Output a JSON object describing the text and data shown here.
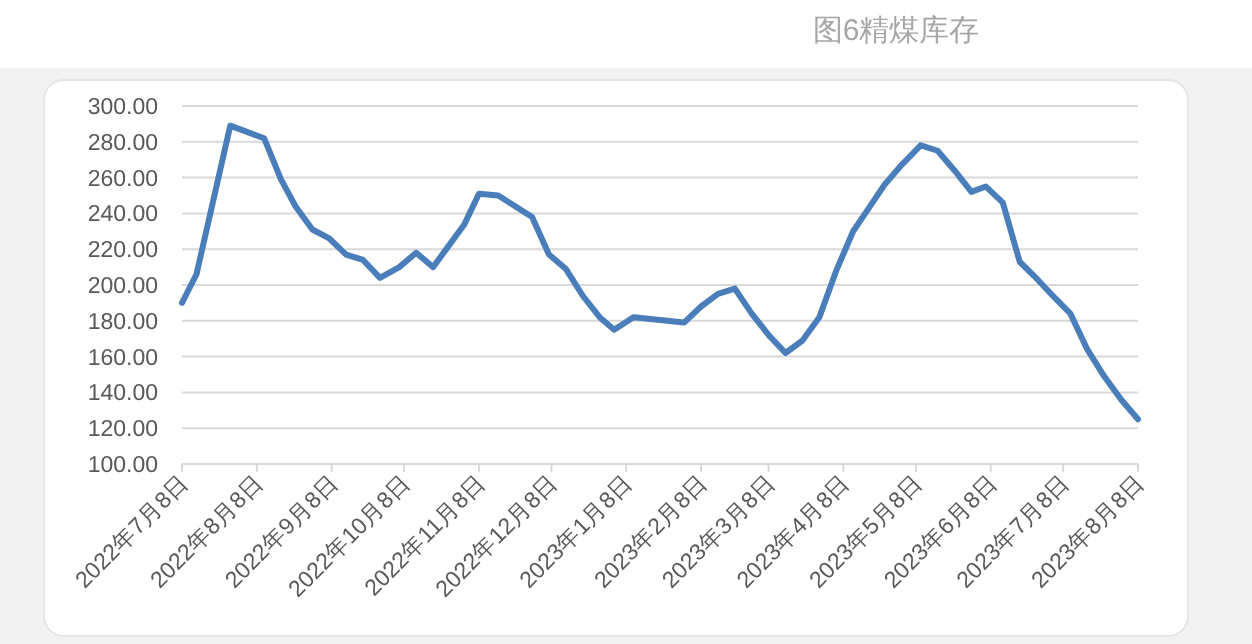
{
  "chart_data": {
    "type": "line",
    "title": "图6精煤库存",
    "x": [
      "2022-07-08",
      "2022-07-14",
      "2022-07-28",
      "2022-08-11",
      "2022-08-18",
      "2022-08-24",
      "2022-08-31",
      "2022-09-07",
      "2022-09-14",
      "2022-09-21",
      "2022-09-28",
      "2022-10-06",
      "2022-10-13",
      "2022-10-20",
      "2022-10-26",
      "2022-11-02",
      "2022-11-08",
      "2022-11-16",
      "2022-11-23",
      "2022-11-30",
      "2022-12-07",
      "2022-12-14",
      "2022-12-21",
      "2022-12-28",
      "2023-01-03",
      "2023-01-11",
      "2023-02-01",
      "2023-02-08",
      "2023-02-15",
      "2023-02-22",
      "2023-03-01",
      "2023-03-08",
      "2023-03-15",
      "2023-03-22",
      "2023-03-29",
      "2023-04-05",
      "2023-04-12",
      "2023-04-18",
      "2023-04-25",
      "2023-05-02",
      "2023-05-10",
      "2023-05-17",
      "2023-05-24",
      "2023-05-31",
      "2023-06-06",
      "2023-06-13",
      "2023-06-20",
      "2023-06-26",
      "2023-07-03",
      "2023-07-11",
      "2023-07-18",
      "2023-07-25",
      "2023-08-01",
      "2023-08-08"
    ],
    "series": [
      {
        "color": "#4a7ebb",
        "values": [
          190,
          206,
          289,
          282,
          259,
          244,
          231,
          226,
          217,
          214,
          204,
          210,
          218,
          210,
          221,
          234,
          251,
          250,
          244,
          238,
          217,
          209,
          194,
          182,
          175,
          182,
          179,
          188,
          195,
          198,
          184,
          172,
          162,
          169,
          182,
          208,
          230,
          242,
          256,
          267,
          278,
          275,
          264,
          252,
          255,
          246,
          213,
          205,
          195,
          184,
          164,
          149,
          136,
          125
        ]
      }
    ],
    "xlim": [
      "2022-07-08",
      "2023-08-08"
    ],
    "xticks": [
      {
        "value": "2022-07-08",
        "label": "2022年7月8日"
      },
      {
        "value": "2022-08-08",
        "label": "2022年8月8日"
      },
      {
        "value": "2022-09-08",
        "label": "2022年9月8日"
      },
      {
        "value": "2022-10-08",
        "label": "2022年10月8日"
      },
      {
        "value": "2022-11-08",
        "label": "2022年11月8日"
      },
      {
        "value": "2022-12-08",
        "label": "2022年12月8日"
      },
      {
        "value": "2023-01-08",
        "label": "2023年1月8日"
      },
      {
        "value": "2023-02-08",
        "label": "2023年2月8日"
      },
      {
        "value": "2023-03-08",
        "label": "2023年3月8日"
      },
      {
        "value": "2023-04-08",
        "label": "2023年4月8日"
      },
      {
        "value": "2023-05-08",
        "label": "2023年5月8日"
      },
      {
        "value": "2023-06-08",
        "label": "2023年6月8日"
      },
      {
        "value": "2023-07-08",
        "label": "2023年7月8日"
      },
      {
        "value": "2023-08-08",
        "label": "2023年8月8日"
      }
    ],
    "ylim": [
      100,
      300
    ],
    "yticks": [
      {
        "value": 100,
        "label": "100.00"
      },
      {
        "value": 120,
        "label": "120.00"
      },
      {
        "value": 140,
        "label": "140.00"
      },
      {
        "value": 160,
        "label": "160.00"
      },
      {
        "value": 180,
        "label": "180.00"
      },
      {
        "value": 200,
        "label": "200.00"
      },
      {
        "value": 220,
        "label": "220.00"
      },
      {
        "value": 240,
        "label": "240.00"
      },
      {
        "value": 260,
        "label": "260.00"
      },
      {
        "value": 280,
        "label": "280.00"
      },
      {
        "value": 300,
        "label": "300.00"
      }
    ],
    "grid": "y",
    "marker": "none",
    "line_style": "solid"
  }
}
